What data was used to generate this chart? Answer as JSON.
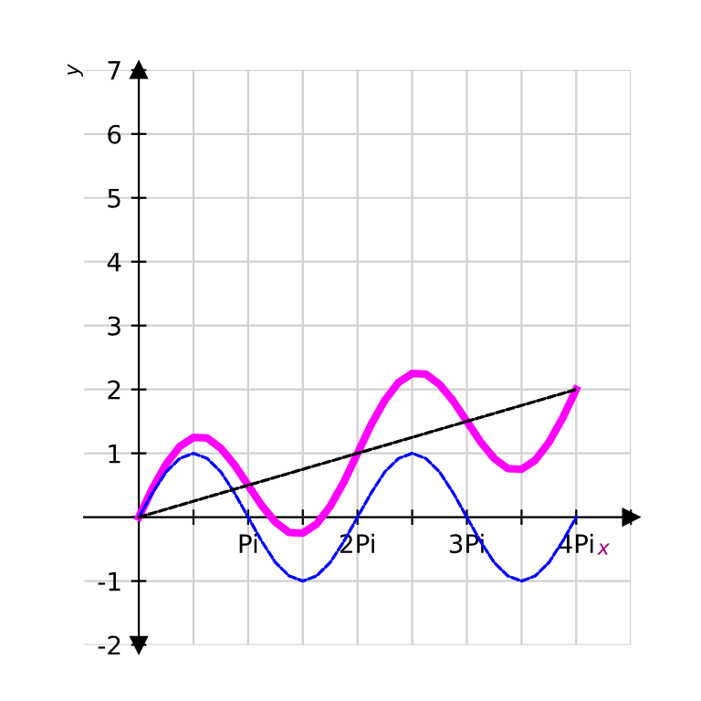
{
  "chart_data": {
    "type": "line",
    "xlabel": "x",
    "ylabel": "y",
    "x": [
      0,
      0.125,
      0.25,
      0.375,
      0.5,
      0.625,
      0.75,
      0.875,
      1,
      1.125,
      1.25,
      1.375,
      1.5,
      1.625,
      1.75,
      1.875,
      2,
      2.125,
      2.25,
      2.375,
      2.5,
      2.625,
      2.75,
      2.875,
      3,
      3.125,
      3.25,
      3.375,
      3.5,
      3.625,
      3.75,
      3.875,
      4
    ],
    "series": [
      {
        "color": "#0000ff",
        "line_style": "dashed",
        "values": [
          0,
          0.38,
          0.71,
          0.92,
          1,
          0.92,
          0.71,
          0.38,
          0,
          -0.38,
          -0.71,
          -0.92,
          -1,
          -0.92,
          -0.71,
          -0.38,
          0,
          0.38,
          0.71,
          0.92,
          1,
          0.92,
          0.71,
          0.38,
          0,
          -0.38,
          -0.71,
          -0.92,
          -1,
          -0.92,
          -0.71,
          -0.38,
          0
        ]
      },
      {
        "color": "#000000",
        "line_style": "dashed",
        "x": [
          0,
          4
        ],
        "values": [
          0,
          2
        ]
      },
      {
        "color": "#ff00ff",
        "line_style": "solid",
        "values": [
          0,
          0.45,
          0.83,
          1.11,
          1.25,
          1.24,
          1.08,
          0.82,
          0.5,
          0.18,
          -0.08,
          -0.24,
          -0.25,
          -0.11,
          0.17,
          0.55,
          1,
          1.45,
          1.83,
          2.11,
          2.25,
          2.24,
          2.08,
          1.82,
          1.5,
          1.18,
          0.92,
          0.76,
          0.75,
          0.89,
          1.17,
          1.55,
          2
        ]
      }
    ],
    "xlim": [
      -0.5,
      4.5
    ],
    "ylim": [
      -2,
      7
    ],
    "xticks": [
      {
        "value": 0.5,
        "label": null
      },
      {
        "value": 1,
        "label": "Pi"
      },
      {
        "value": 1.5,
        "label": null
      },
      {
        "value": 2,
        "label": "2Pi"
      },
      {
        "value": 2.5,
        "label": null
      },
      {
        "value": 3,
        "label": "3Pi"
      },
      {
        "value": 3.5,
        "label": null
      },
      {
        "value": 4,
        "label": "4Pi"
      },
      {
        "value": 4.5,
        "label": null
      }
    ],
    "yticks": [
      -2,
      -1,
      {
        "value": 0,
        "label": null
      },
      1,
      2,
      3,
      4,
      5,
      6,
      7
    ],
    "grid": true,
    "legend": false,
    "marker": "none"
  }
}
